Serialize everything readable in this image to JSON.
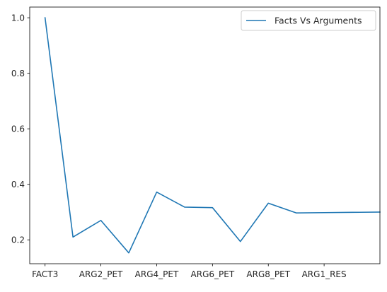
{
  "chart_data": {
    "type": "line",
    "title": "",
    "xlabel": "",
    "ylabel": "",
    "categories": [
      "FACT3",
      "",
      "ARG2_PET",
      "",
      "ARG4_PET",
      "",
      "ARG6_PET",
      "",
      "ARG8_PET",
      "",
      "ARG1_RES",
      "",
      ""
    ],
    "x_tick_labels": [
      "FACT3",
      "ARG2_PET",
      "ARG4_PET",
      "ARG6_PET",
      "ARG8_PET",
      "ARG1_RES"
    ],
    "x_tick_positions": [
      0,
      2,
      4,
      6,
      8,
      10
    ],
    "series": [
      {
        "name": "Facts Vs Arguments",
        "color": "#1f77b4",
        "values": [
          1.0,
          0.21,
          0.27,
          0.153,
          0.372,
          0.318,
          0.316,
          0.194,
          0.332,
          0.297,
          0.298,
          0.299,
          0.3
        ]
      }
    ],
    "y_ticks": [
      0.2,
      0.4,
      0.6,
      0.8,
      1.0
    ],
    "y_tick_labels": [
      "0.2",
      "0.4",
      "0.6",
      "0.8",
      "1.0"
    ],
    "ylim": [
      0.114,
      1.0385
    ],
    "xlim": [
      -0.55,
      12.0
    ],
    "legend_position": "top-right",
    "grid": false
  }
}
